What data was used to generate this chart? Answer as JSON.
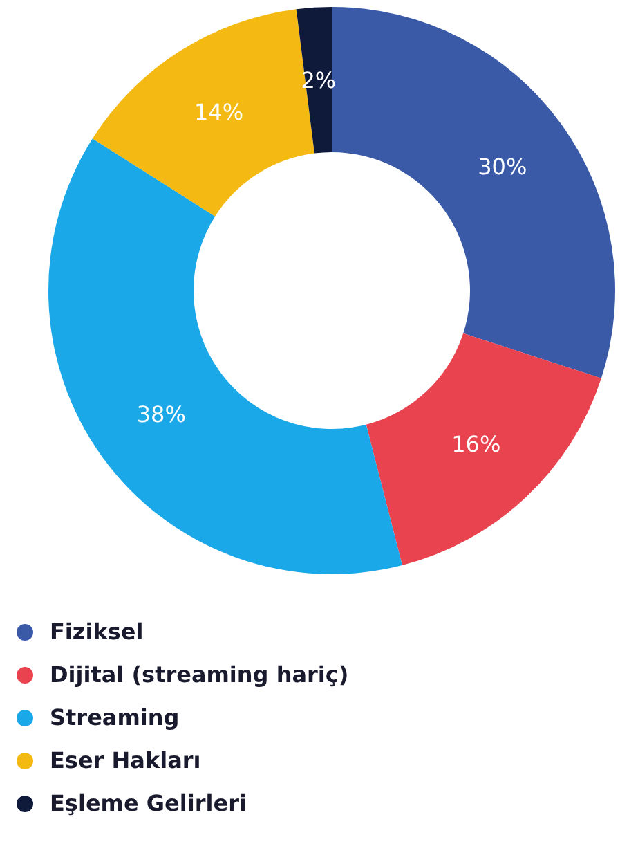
{
  "chart_data": {
    "type": "donut",
    "categories": [
      "Fiziksel",
      "Dijital (streaming hariç)",
      "Streaming",
      "Eser Hakları",
      "Eşleme Gelirleri"
    ],
    "values": [
      30,
      16,
      38,
      14,
      2
    ],
    "value_labels": [
      "30%",
      "16%",
      "38%",
      "14%",
      "2%"
    ],
    "colors": [
      "#3a5aa8",
      "#e8434f",
      "#1aa8e8",
      "#f4b912",
      "#0f1a3a"
    ],
    "legend": "bottom left"
  }
}
